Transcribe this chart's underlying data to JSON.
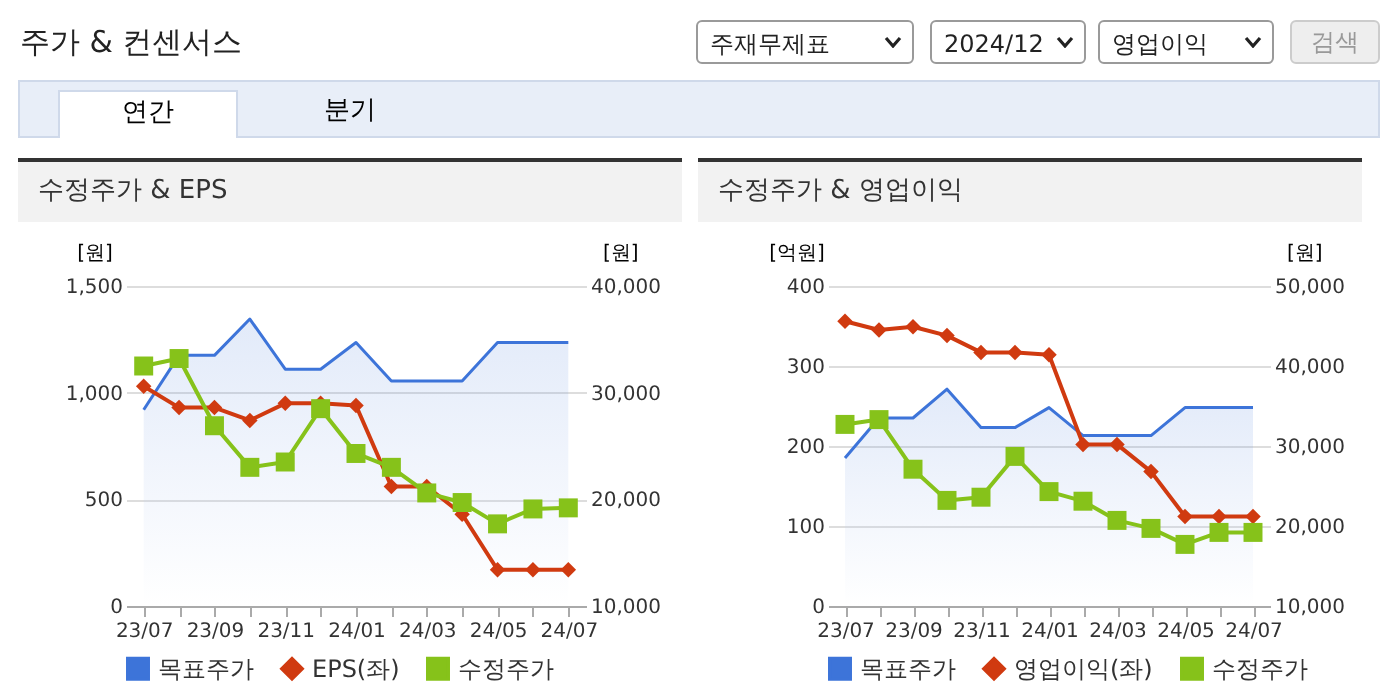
{
  "chart_data": [
    {
      "type": "other",
      "title": "주가 & 컨센서스",
      "annotations": [
        "주재무제표",
        "2024/12",
        "영업이익",
        "검색",
        "연간",
        "분기"
      ]
    },
    {
      "type": "line",
      "title": "수정주가 & EPS",
      "ylabel": "[원]",
      "y2label": "[원]",
      "categories": [
        "23/07",
        null,
        "23/09",
        null,
        "23/11",
        null,
        "24/01",
        null,
        "24/03",
        null,
        "24/05",
        null,
        "24/07"
      ],
      "series": [
        {
          "name": "목표주가",
          "type": "area",
          "axis": "y2",
          "color": "#3d74d9",
          "marker": "none",
          "values": [
            28400,
            33500,
            33500,
            36900,
            32200,
            32200,
            34700,
            31100,
            31100,
            31100,
            34700,
            34700,
            34700
          ]
        },
        {
          "name": "EPS(좌)",
          "type": "line",
          "color": "#d03a10",
          "marker": "diamond",
          "values": [
            1030,
            930,
            930,
            870,
            950,
            950,
            940,
            560,
            560,
            430,
            170,
            170,
            170
          ]
        },
        {
          "name": "수정주가",
          "type": "line",
          "axis": "y2",
          "color": "#86c21a",
          "marker": "square",
          "values": [
            32500,
            33200,
            26900,
            23000,
            23500,
            28500,
            24300,
            23000,
            20600,
            19700,
            17700,
            19100,
            19200
          ]
        }
      ],
      "ylim": [
        0,
        1500
      ],
      "yticks": [
        0,
        500,
        {
          "value": 1000,
          "label": "1,000"
        },
        {
          "value": 1500,
          "label": "1,500"
        }
      ],
      "y2lim": [
        10000,
        40000
      ],
      "y2ticks": [
        {
          "value": 10000,
          "label": "10,000"
        },
        {
          "value": 20000,
          "label": "20,000"
        },
        {
          "value": 30000,
          "label": "30,000"
        },
        {
          "value": 40000,
          "label": "40,000"
        }
      ],
      "grid": "y",
      "legend": "bottom"
    },
    {
      "type": "line",
      "title": "수정주가 & 영업이익",
      "ylabel": "[억원]",
      "y2label": "[원]",
      "categories": [
        "23/07",
        null,
        "23/09",
        null,
        "23/11",
        null,
        "24/01",
        null,
        "24/03",
        null,
        "24/05",
        null,
        "24/07"
      ],
      "series": [
        {
          "name": "목표주가",
          "type": "area",
          "axis": "y2",
          "color": "#3d74d9",
          "marker": "none",
          "values": [
            28500,
            33500,
            33500,
            37100,
            32300,
            32300,
            34800,
            31300,
            31300,
            31300,
            34800,
            34800,
            34800
          ]
        },
        {
          "name": "영업이익(좌)",
          "type": "line",
          "color": "#d03a10",
          "marker": "diamond",
          "values": [
            356,
            345,
            349,
            338,
            317,
            317,
            314,
            202,
            202,
            168,
            112,
            112,
            112
          ]
        },
        {
          "name": "수정주가",
          "type": "line",
          "axis": "y2",
          "color": "#86c21a",
          "marker": "square",
          "values": [
            32700,
            33300,
            27100,
            23200,
            23600,
            28700,
            24300,
            23100,
            20700,
            19700,
            17700,
            19200,
            19200
          ]
        }
      ],
      "ylim": [
        0,
        400
      ],
      "yticks": [
        0,
        100,
        200,
        300,
        400
      ],
      "y2lim": [
        10000,
        50000
      ],
      "y2ticks": [
        {
          "value": 10000,
          "label": "10,000"
        },
        {
          "value": 20000,
          "label": "20,000"
        },
        {
          "value": 30000,
          "label": "30,000"
        },
        {
          "value": 40000,
          "label": "40,000"
        },
        {
          "value": 50000,
          "label": "50,000"
        }
      ],
      "grid": "y",
      "legend": "bottom"
    }
  ]
}
